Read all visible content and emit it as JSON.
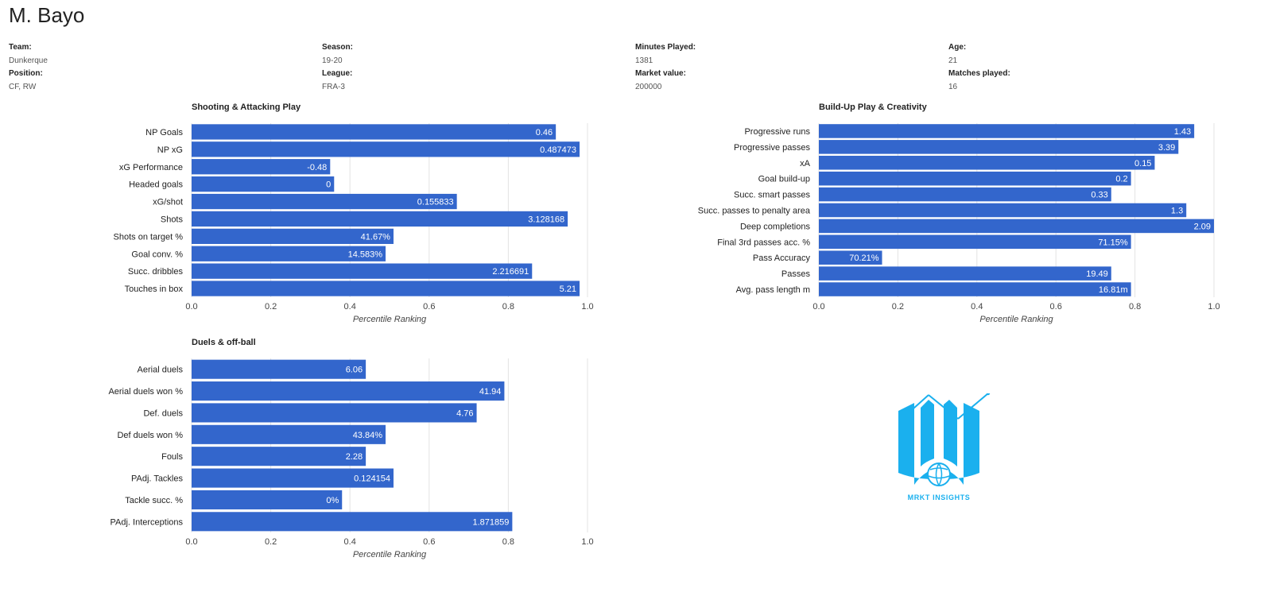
{
  "player": {
    "name": "M. Bayo",
    "info": [
      {
        "label": "Team:",
        "value": "Dunkerque"
      },
      {
        "label": "Position:",
        "value": "CF, RW"
      },
      {
        "label": "Season:",
        "value": "19-20"
      },
      {
        "label": "League:",
        "value": "FRA-3"
      },
      {
        "label": "Minutes Played:",
        "value": "1381"
      },
      {
        "label": "Market value:",
        "value": "200000"
      },
      {
        "label": "Age:",
        "value": "21"
      },
      {
        "label": "Matches played:",
        "value": "16"
      }
    ]
  },
  "logo": {
    "text": "MRKT INSIGHTS",
    "icon": "chart-book-ball-logo",
    "color": "#1ab0ee"
  },
  "colors": {
    "bar": "#3366cc",
    "grid": "#e3e3e3"
  },
  "chart_data": [
    {
      "type": "bar",
      "orientation": "horizontal",
      "title": "Shooting & Attacking Play",
      "xlabel": "Percentile Ranking",
      "xlim": [
        0,
        1
      ],
      "ticks": [
        "0.0",
        "0.2",
        "0.4",
        "0.6",
        "0.8",
        "1.0"
      ],
      "categories": [
        "NP Goals",
        "NP xG",
        "xG Performance",
        "Headed goals",
        "xG/shot",
        "Shots",
        "Shots on target %",
        "Goal conv. %",
        "Succ. dribbles",
        "Touches in box"
      ],
      "values": [
        0.92,
        0.98,
        0.35,
        0.36,
        0.67,
        0.95,
        0.51,
        0.49,
        0.86,
        0.98
      ],
      "labels": [
        "0.46",
        "0.487473",
        "-0.48",
        "0",
        "0.155833",
        "3.128168",
        "41.67%",
        "14.583%",
        "2.216691",
        "5.21"
      ]
    },
    {
      "type": "bar",
      "orientation": "horizontal",
      "title": "Build-Up Play & Creativity",
      "xlabel": "Percentile Ranking",
      "xlim": [
        0,
        1
      ],
      "ticks": [
        "0.0",
        "0.2",
        "0.4",
        "0.6",
        "0.8",
        "1.0"
      ],
      "categories": [
        "Progressive runs",
        "Progressive passes",
        "xA",
        "Goal build-up",
        "Succ. smart passes",
        "Succ. passes to penalty area",
        "Deep completions",
        "Final 3rd passes acc. %",
        "Pass Accuracy",
        "Passes",
        "Avg. pass length m"
      ],
      "values": [
        0.95,
        0.91,
        0.85,
        0.79,
        0.74,
        0.93,
        1.0,
        0.79,
        0.16,
        0.74,
        0.79
      ],
      "labels": [
        "1.43",
        "3.39",
        "0.15",
        "0.2",
        "0.33",
        "1.3",
        "2.09",
        "71.15%",
        "70.21%",
        "19.49",
        "16.81m"
      ]
    },
    {
      "type": "bar",
      "orientation": "horizontal",
      "title": "Duels & off-ball",
      "xlabel": "Percentile Ranking",
      "xlim": [
        0,
        1
      ],
      "ticks": [
        "0.0",
        "0.2",
        "0.4",
        "0.6",
        "0.8",
        "1.0"
      ],
      "categories": [
        "Aerial duels",
        "Aerial duels won %",
        "Def. duels",
        "Def duels won %",
        "Fouls",
        "PAdj. Tackles",
        "Tackle succ. %",
        "PAdj. Interceptions"
      ],
      "values": [
        0.44,
        0.79,
        0.72,
        0.49,
        0.44,
        0.51,
        0.38,
        0.81
      ],
      "labels": [
        "6.06",
        "41.94",
        "4.76",
        "43.84%",
        "2.28",
        "0.124154",
        "0%",
        "1.871859"
      ]
    }
  ]
}
